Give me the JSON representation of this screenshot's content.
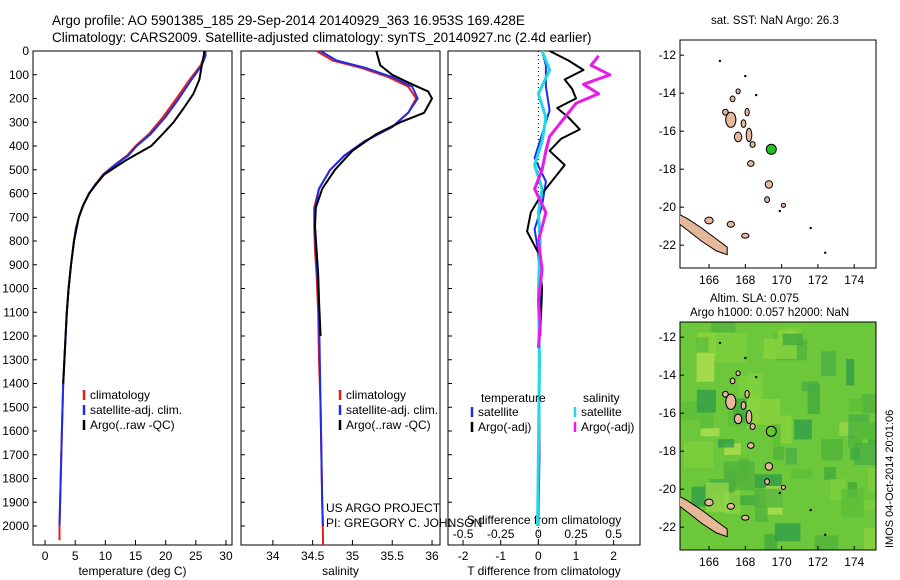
{
  "header": {
    "line1": "Argo profile: AO 5901385_185 29-Sep-2014 20140929_363 16.953S 169.428E",
    "line2": "Climatology: CARS2009. Satellite-adjusted climatology: synTS_20140927.nc (2.4d earlier)"
  },
  "credit": {
    "line1": "US ARGO PROJECT",
    "line2": "PI: GREGORY C. JOHNSON"
  },
  "side_label": "IMOS 04-Oct-2014 20:01:06",
  "colors": {
    "climatology": "#e81c1c",
    "satellite": "#1c2ce8",
    "argo": "#000000",
    "salinity_sat": "#20d8e8",
    "salinity_argo": "#e81ce8",
    "land": "#e6b89a",
    "float_marker": "#22c022"
  },
  "chart_data": [
    {
      "type": "line",
      "xlabel": "temperature (deg C)",
      "ylabel": "",
      "xlim": [
        -2,
        31
      ],
      "ylim": [
        2080,
        0
      ],
      "xticks": [
        "0",
        "5",
        "10",
        "15",
        "20",
        "25",
        "30"
      ],
      "xtick_values": [
        0,
        5,
        10,
        15,
        20,
        25,
        30
      ],
      "yticks": [
        "0",
        "100",
        "200",
        "300",
        "400",
        "500",
        "600",
        "700",
        "800",
        "900",
        "1000",
        "1100",
        "1200",
        "1300",
        "1400",
        "1500",
        "1600",
        "1700",
        "1800",
        "1900",
        "2000"
      ],
      "ytick_values": [
        0,
        100,
        200,
        300,
        400,
        500,
        600,
        700,
        800,
        900,
        1000,
        1100,
        1200,
        1300,
        1400,
        1500,
        1600,
        1700,
        1800,
        1900,
        2000
      ],
      "legend": [
        "climatology",
        "satellite-adj. clim.",
        "Argo(..raw -QC)"
      ],
      "legend_placement": "lower-middle",
      "series": [
        {
          "name": "climatology",
          "color_key": "climatology",
          "x": [
            26.6,
            26.5,
            25.8,
            24,
            21.8,
            19.5,
            17.2,
            15,
            13.6,
            11.5,
            9.6,
            8.4,
            7.3,
            6.3,
            5.6,
            5.1,
            4.8,
            4.3,
            3.9,
            3.6,
            3.4,
            3.2,
            3.0,
            2.8,
            2.6,
            2.4,
            2.4
          ],
          "y": [
            0,
            20,
            60,
            120,
            200,
            280,
            350,
            400,
            440,
            480,
            520,
            560,
            600,
            650,
            700,
            750,
            800,
            900,
            1000,
            1100,
            1200,
            1300,
            1400,
            1600,
            1800,
            2000,
            2060
          ]
        },
        {
          "name": "satellite-adj. clim.",
          "color_key": "satellite",
          "x": [
            26.6,
            26.6,
            26,
            24.3,
            22.2,
            19.9,
            17.5,
            15.2,
            13.8,
            11.6,
            9.7,
            8.4,
            7.3,
            6.3,
            5.6,
            5.1,
            4.8,
            4.3,
            3.9,
            3.6,
            3.4,
            3.2,
            3.0,
            2.8,
            2.6,
            2.4
          ],
          "y": [
            0,
            20,
            60,
            120,
            200,
            280,
            350,
            400,
            440,
            480,
            520,
            560,
            600,
            650,
            700,
            750,
            800,
            900,
            1000,
            1100,
            1200,
            1300,
            1400,
            1600,
            1800,
            2000
          ]
        },
        {
          "name": "Argo(..raw -QC)",
          "color_key": "argo",
          "x": [
            26.4,
            26.3,
            26,
            25.6,
            24.6,
            23,
            21.3,
            19.5,
            17.6,
            15.5,
            13.4,
            11.6,
            9.8,
            8.5,
            7.3,
            6.3,
            5.6,
            5.2,
            4.8,
            4.3,
            3.9,
            3.6,
            3.4,
            3.2,
            3.0
          ],
          "y": [
            0,
            20,
            60,
            120,
            180,
            240,
            300,
            350,
            400,
            430,
            460,
            490,
            520,
            560,
            600,
            650,
            700,
            750,
            800,
            900,
            1000,
            1100,
            1200,
            1300,
            1400
          ]
        }
      ]
    },
    {
      "type": "line",
      "xlabel": "salinity",
      "ylabel": "",
      "xlim": [
        33.6,
        36.1
      ],
      "ylim": [
        2080,
        0
      ],
      "xticks": [
        "34",
        "34.5",
        "35",
        "35.5",
        "36"
      ],
      "xtick_values": [
        34,
        34.5,
        35,
        35.5,
        36
      ],
      "legend": [
        "climatology",
        "satellite-adj. clim.",
        "Argo(..raw -QC)"
      ],
      "legend_placement": "lower-middle",
      "series": [
        {
          "name": "climatology",
          "color_key": "climatology",
          "x": [
            34.55,
            34.75,
            35.1,
            35.45,
            35.7,
            35.8,
            35.7,
            35.5,
            35.15,
            34.9,
            34.72,
            34.58,
            34.52,
            34.52,
            34.53,
            34.55,
            34.57,
            34.58,
            34.6,
            34.61,
            34.62,
            34.63,
            34.63
          ],
          "y": [
            0,
            40,
            70,
            110,
            150,
            200,
            260,
            320,
            380,
            440,
            500,
            580,
            660,
            740,
            840,
            940,
            1100,
            1300,
            1500,
            1700,
            1900,
            2050,
            2080
          ]
        },
        {
          "name": "satellite-adj. clim.",
          "color_key": "satellite",
          "x": [
            34.6,
            34.8,
            35.15,
            35.5,
            35.75,
            35.82,
            35.7,
            35.5,
            35.15,
            34.9,
            34.72,
            34.58,
            34.53,
            34.53,
            34.54,
            34.56,
            34.58,
            34.59,
            34.6,
            34.61,
            34.62,
            34.63
          ],
          "y": [
            0,
            40,
            70,
            110,
            150,
            200,
            260,
            320,
            380,
            440,
            500,
            580,
            660,
            740,
            840,
            940,
            1100,
            1300,
            1500,
            1700,
            1900,
            2000
          ]
        },
        {
          "name": "Argo(..raw -QC)",
          "color_key": "argo",
          "x": [
            35.3,
            35.35,
            35.5,
            35.75,
            35.95,
            36.0,
            35.95,
            35.9,
            35.6,
            35.3,
            35.0,
            34.78,
            34.62,
            34.54,
            34.53,
            34.55,
            34.57,
            34.58,
            34.6
          ],
          "y": [
            0,
            60,
            100,
            140,
            170,
            200,
            230,
            260,
            300,
            350,
            420,
            500,
            580,
            660,
            740,
            840,
            940,
            1050,
            1200
          ]
        }
      ]
    },
    {
      "type": "line",
      "xlabel": "T difference from climatology",
      "top_xlabel": "S difference from climatology",
      "xlim": [
        -2.4,
        2.7
      ],
      "ylim": [
        2080,
        0
      ],
      "xticks": [
        "-2",
        "-1",
        "0",
        "1",
        "2"
      ],
      "xtick_values": [
        -2,
        -1,
        0,
        1,
        2
      ],
      "top_xticks": [
        "-0.5",
        "-0.25",
        "0",
        "0.25",
        "0.5"
      ],
      "legend_headers": [
        "temperature",
        "salinity"
      ],
      "legend": [
        "satellite",
        "Argo(-adj)",
        "satellite",
        "Argo(-adj)"
      ],
      "legend_placement": "lower-middle",
      "series": [
        {
          "name": "satellite",
          "color_key": "satellite",
          "x": [
            0.1,
            0.2,
            0.2,
            0.3,
            0.1,
            -0.1,
            0.2,
            0.1,
            -0.1,
            0.0,
            0.05,
            0.02,
            0.03,
            0.0
          ],
          "y": [
            0,
            60,
            150,
            250,
            350,
            450,
            550,
            650,
            750,
            850,
            1000,
            1300,
            1700,
            2000
          ]
        },
        {
          "name": "Argo(-adj)",
          "color_key": "argo",
          "x": [
            0.3,
            0.8,
            1.2,
            0.7,
            0.9,
            1.0,
            0.5,
            0.8,
            1.1,
            0.6,
            0.3,
            0.7,
            0.4,
            0.1,
            -0.2,
            -0.3,
            0.0,
            0.1,
            0.05
          ],
          "y": [
            0,
            40,
            80,
            120,
            160,
            200,
            240,
            280,
            330,
            370,
            420,
            480,
            540,
            600,
            680,
            760,
            850,
            1000,
            1200
          ]
        },
        {
          "name": "satellite (S)",
          "color_key": "salinity_sat",
          "x": [
            0.1,
            0.3,
            0.0,
            0.2,
            0.1,
            -0.1,
            0.1,
            0.0,
            0.05,
            0.0,
            0.03,
            0.0,
            -0.02
          ],
          "y": [
            0,
            80,
            180,
            280,
            380,
            480,
            580,
            680,
            800,
            1000,
            1300,
            1700,
            2000
          ]
        },
        {
          "name": "Argo(-adj) (S)",
          "color_key": "salinity_argo",
          "x": [
            1.6,
            1.4,
            1.9,
            1.2,
            1.6,
            1.0,
            0.8,
            0.6,
            0.3,
            0.2,
            0.1,
            -0.1,
            0.2,
            0.0,
            0.1,
            0.0,
            0.05,
            0.0
          ],
          "y": [
            20,
            60,
            100,
            140,
            180,
            220,
            260,
            300,
            360,
            420,
            500,
            580,
            680,
            800,
            920,
            1050,
            1150,
            1250
          ]
        }
      ]
    }
  ],
  "map_top": {
    "title": "sat. SST: NaN Argo: 26.3",
    "xticks": [
      "166",
      "168",
      "170",
      "172",
      "174"
    ],
    "yticks": [
      "-12",
      "-14",
      "-16",
      "-18",
      "-20",
      "-22"
    ],
    "xlim": [
      164.4,
      175.2
    ],
    "ylim": [
      -23.2,
      -11.2
    ],
    "float": {
      "lon": 169.43,
      "lat": -16.95
    }
  },
  "map_bottom": {
    "title1": "Altim. SLA: 0.075",
    "title2": "Argo h1000: 0.057 h2000: NaN",
    "xticks": [
      "166",
      "168",
      "170",
      "172",
      "174"
    ],
    "yticks": [
      "-12",
      "-14",
      "-16",
      "-18",
      "-20",
      "-22"
    ],
    "xlim": [
      164.4,
      175.2
    ],
    "ylim": [
      -23.2,
      -11.2
    ],
    "float": {
      "lon": 169.43,
      "lat": -16.95
    }
  }
}
